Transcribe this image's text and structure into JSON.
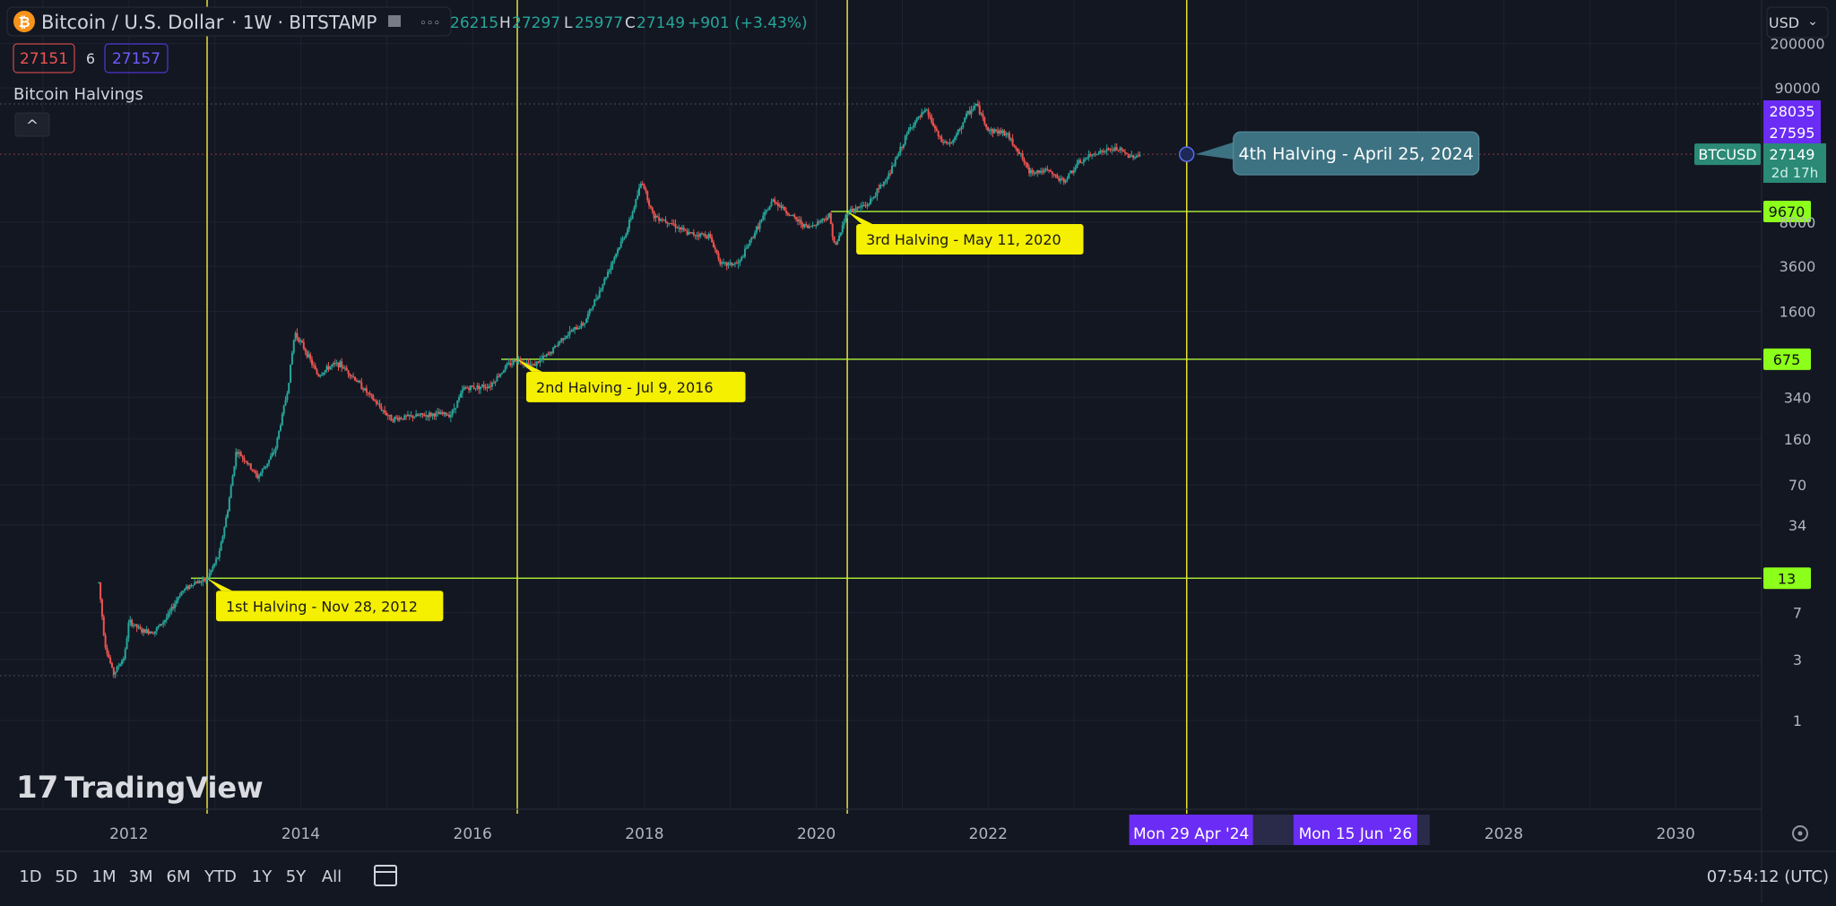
{
  "header": {
    "symbol_icon": "bitcoin-icon",
    "symbol_glyph": "₿",
    "title": "Bitcoin / U.S. Dollar",
    "interval_exchange": "· 1W · BITSTAMP",
    "more_glyph": "◦◦◦",
    "ohlc": [
      {
        "k": "",
        "v": "26215"
      },
      {
        "k": "H",
        "v": "27297"
      },
      {
        "k": "L",
        "v": "25977"
      },
      {
        "k": "C",
        "v": "27149"
      }
    ],
    "change": "+901 (+3.43%)",
    "sell": "27151",
    "spread": "6",
    "buy": "27157",
    "currency": "USD",
    "currency_caret": "⌄"
  },
  "indicator": {
    "name": "Bitcoin Halvings",
    "collapse_glyph": "^"
  },
  "chart_data": {
    "type": "candlestick",
    "symbol": "BTCUSD",
    "interval": "1W",
    "y_scale": "log",
    "ylim": [
      0.6,
      240000
    ],
    "xlim": [
      2010.5,
      2031.0
    ],
    "grid": true,
    "y_ticks": [
      200000,
      90000,
      8000,
      3600,
      1600,
      340,
      160,
      70,
      34,
      7,
      3,
      1
    ],
    "x_ticks": [
      "2012",
      "2014",
      "2016",
      "2018",
      "2020",
      "2022",
      "2028",
      "2030"
    ],
    "x_tick_values": [
      2012,
      2014,
      2016,
      2018,
      2020,
      2022,
      2028,
      2030
    ],
    "price_path": [
      [
        2011.65,
        12
      ],
      [
        2011.72,
        4
      ],
      [
        2011.82,
        2.3
      ],
      [
        2011.95,
        3.2
      ],
      [
        2012.0,
        6
      ],
      [
        2012.15,
        5
      ],
      [
        2012.3,
        5
      ],
      [
        2012.45,
        6.5
      ],
      [
        2012.6,
        10
      ],
      [
        2012.75,
        12
      ],
      [
        2012.9,
        12.5
      ],
      [
        2013.05,
        20
      ],
      [
        2013.15,
        45
      ],
      [
        2013.25,
        130
      ],
      [
        2013.35,
        110
      ],
      [
        2013.5,
        80
      ],
      [
        2013.7,
        130
      ],
      [
        2013.85,
        400
      ],
      [
        2013.93,
        1100
      ],
      [
        2014.05,
        800
      ],
      [
        2014.2,
        500
      ],
      [
        2014.35,
        600
      ],
      [
        2014.45,
        620
      ],
      [
        2014.6,
        500
      ],
      [
        2014.8,
        350
      ],
      [
        2015.05,
        230
      ],
      [
        2015.3,
        240
      ],
      [
        2015.55,
        250
      ],
      [
        2015.75,
        250
      ],
      [
        2015.9,
        400
      ],
      [
        2016.2,
        420
      ],
      [
        2016.4,
        600
      ],
      [
        2016.52,
        675
      ],
      [
        2016.7,
        600
      ],
      [
        2016.9,
        750
      ],
      [
        2017.05,
        1000
      ],
      [
        2017.3,
        1300
      ],
      [
        2017.5,
        2500
      ],
      [
        2017.65,
        4300
      ],
      [
        2017.8,
        7000
      ],
      [
        2017.97,
        17000
      ],
      [
        2018.1,
        9000
      ],
      [
        2018.3,
        8000
      ],
      [
        2018.5,
        6500
      ],
      [
        2018.75,
        6300
      ],
      [
        2018.9,
        3700
      ],
      [
        2019.1,
        3800
      ],
      [
        2019.3,
        7000
      ],
      [
        2019.5,
        12000
      ],
      [
        2019.7,
        9000
      ],
      [
        2019.9,
        7200
      ],
      [
        2020.15,
        9000
      ],
      [
        2020.22,
        5000
      ],
      [
        2020.36,
        9670
      ],
      [
        2020.6,
        11000
      ],
      [
        2020.85,
        19000
      ],
      [
        2021.0,
        32000
      ],
      [
        2021.1,
        45000
      ],
      [
        2021.28,
        60000
      ],
      [
        2021.45,
        34000
      ],
      [
        2021.58,
        33000
      ],
      [
        2021.75,
        55000
      ],
      [
        2021.86,
        67000
      ],
      [
        2022.0,
        42000
      ],
      [
        2022.2,
        40000
      ],
      [
        2022.35,
        29000
      ],
      [
        2022.47,
        20000
      ],
      [
        2022.7,
        20000
      ],
      [
        2022.87,
        16500
      ],
      [
        2023.05,
        23000
      ],
      [
        2023.25,
        28000
      ],
      [
        2023.5,
        30000
      ],
      [
        2023.65,
        26000
      ],
      [
        2023.78,
        27149
      ]
    ],
    "halvings": [
      {
        "x": 2012.91,
        "label": "1st Halving - Nov 28, 2012",
        "price": 13,
        "price_label": "13"
      },
      {
        "x": 2016.52,
        "label": "2nd Halving - Jul 9, 2016",
        "price": 675,
        "price_label": "675"
      },
      {
        "x": 2020.36,
        "label": "3rd Halving - May 11, 2020",
        "price": 9670,
        "price_label": "9670"
      },
      {
        "x": 2024.31,
        "label": "4th Halving - April 25, 2024",
        "future": true
      }
    ],
    "current_price": 27149,
    "current_price_label": "27149",
    "current_countdown": "2d 17h",
    "current_symbol_label": "BTCUSD",
    "ask": 28035,
    "ask_label": "28035",
    "bid": 27595,
    "bid_label": "27595",
    "date_range_labels": [
      "Mon 29 Apr '24",
      "Mon 15 Jun '26"
    ],
    "date_range_values": [
      2024.33,
      2026.45
    ]
  },
  "footer": {
    "periods": [
      "1D",
      "5D",
      "1M",
      "3M",
      "6M",
      "YTD",
      "1Y",
      "5Y",
      "All"
    ],
    "calendar_icon": "calendar-range-icon",
    "clock": "07:54:12 (UTC)",
    "settings_icon": "gear-icon",
    "brand": "TradingView",
    "brand_mark": "17"
  },
  "colors": {
    "bg": "#131722",
    "grid": "#1f2230",
    "up": "#26a69a",
    "down": "#ef5350",
    "halving_line": "#e8e03a",
    "level_line": "#a3e635",
    "label_yellow": "#f5f000",
    "label_green": "#8cff1a",
    "callout": "#3d7282",
    "purple": "#6b2cf5",
    "price_badge": "#2a8a76"
  }
}
